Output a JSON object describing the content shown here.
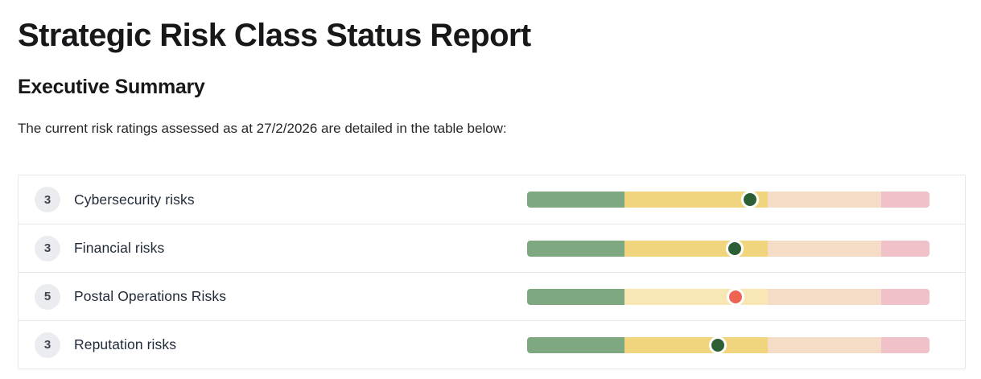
{
  "page": {
    "title": "Strategic Risk Class Status Report",
    "section_heading": "Executive Summary",
    "intro_text": "The current risk ratings assessed as at 27/2/2026 are detailed in the table below:"
  },
  "colors": {
    "segment_green": "#7ea87f",
    "segment_yellow": "#f1d57e",
    "segment_yellow_faded": "#f8e6b4",
    "segment_orange_faded": "#f4dcc6",
    "segment_red_faded": "#f0c1c8",
    "dot_green": "#2d5f34",
    "dot_red": "#ee6352",
    "badge_background": "#eaecef",
    "table_border": "#e5e7eb"
  },
  "risk_table": {
    "rows": [
      {
        "badge": "3",
        "label": "Cybersecurity risks",
        "dot_color": "#2d5f34",
        "dot_position_pct": 55.4,
        "segments": [
          {
            "name": "scale-segment-green",
            "color": "#7ea87f",
            "width_pct": 24.2
          },
          {
            "name": "scale-segment-yellow",
            "color": "#f1d57e",
            "width_pct": 35.6
          },
          {
            "name": "scale-segment-orange",
            "color": "#f4dcc6",
            "width_pct": 28.2
          },
          {
            "name": "scale-segment-red",
            "color": "#f0c1c8",
            "width_pct": 12.0
          }
        ]
      },
      {
        "badge": "3",
        "label": "Financial risks",
        "dot_color": "#2d5f34",
        "dot_position_pct": 51.6,
        "segments": [
          {
            "name": "scale-segment-green",
            "color": "#7ea87f",
            "width_pct": 24.2
          },
          {
            "name": "scale-segment-yellow",
            "color": "#f1d57e",
            "width_pct": 35.6
          },
          {
            "name": "scale-segment-orange",
            "color": "#f4dcc6",
            "width_pct": 28.2
          },
          {
            "name": "scale-segment-red",
            "color": "#f0c1c8",
            "width_pct": 12.0
          }
        ]
      },
      {
        "badge": "5",
        "label": "Postal Operations Risks",
        "dot_color": "#ee6352",
        "dot_position_pct": 51.8,
        "segments": [
          {
            "name": "scale-segment-green",
            "color": "#7ea87f",
            "width_pct": 24.2
          },
          {
            "name": "scale-segment-yellow",
            "color": "#f8e6b4",
            "width_pct": 35.6
          },
          {
            "name": "scale-segment-orange",
            "color": "#f4dcc6",
            "width_pct": 28.2
          },
          {
            "name": "scale-segment-red",
            "color": "#f0c1c8",
            "width_pct": 12.0
          }
        ]
      },
      {
        "badge": "3",
        "label": "Reputation risks",
        "dot_color": "#2d5f34",
        "dot_position_pct": 47.4,
        "segments": [
          {
            "name": "scale-segment-green",
            "color": "#7ea87f",
            "width_pct": 24.2
          },
          {
            "name": "scale-segment-yellow",
            "color": "#f1d57e",
            "width_pct": 35.6
          },
          {
            "name": "scale-segment-orange",
            "color": "#f4dcc6",
            "width_pct": 28.2
          },
          {
            "name": "scale-segment-red",
            "color": "#f0c1c8",
            "width_pct": 12.0
          }
        ]
      }
    ]
  }
}
